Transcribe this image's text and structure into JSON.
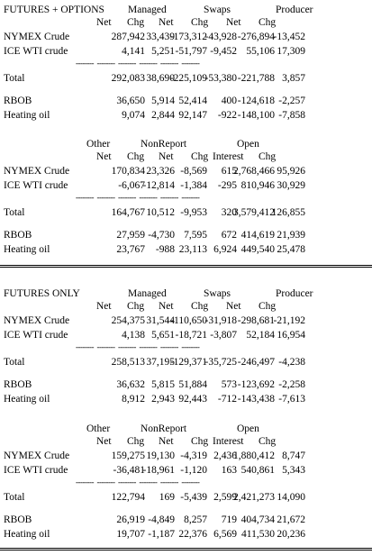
{
  "sections": [
    {
      "title": "FUTURES + OPTIONS",
      "block1": {
        "group_headers": [
          "Managed",
          "Swaps",
          "Producer"
        ],
        "sub_headers": [
          "Net",
          "Chg",
          "Net",
          "Chg",
          "Net",
          "Chg"
        ],
        "rows": [
          {
            "label": "NYMEX Crude",
            "values": [
              "287,942",
              "33,439",
              "-173,312",
              "-43,928",
              "-276,894",
              "-13,452"
            ]
          },
          {
            "label": "ICE WTI crude",
            "values": [
              "4,141",
              "5,251",
              "-51,797",
              "-9,452",
              "55,106",
              "17,309"
            ]
          }
        ],
        "total": {
          "label": "Total",
          "values": [
            "292,083",
            "38,690",
            "-225,109",
            "-53,380",
            "-221,788",
            "3,857"
          ]
        },
        "rows2": [
          {
            "label": "RBOB",
            "values": [
              "36,650",
              "5,914",
              "52,414",
              "400",
              "-124,618",
              "-2,257"
            ]
          },
          {
            "label": "Heating oil",
            "values": [
              "9,074",
              "2,844",
              "92,147",
              "-922",
              "-148,100",
              "-7,858"
            ]
          }
        ]
      },
      "block2": {
        "group_headers": [
          "Other",
          "NonReport",
          "Open"
        ],
        "sub_headers": [
          "Net",
          "Chg",
          "Net",
          "Chg",
          "Interest",
          "Chg"
        ],
        "rows": [
          {
            "label": "NYMEX Crude",
            "values": [
              "170,834",
              "23,326",
              "-8,569",
              "615",
              "2,768,466",
              "95,926"
            ]
          },
          {
            "label": "ICE WTI crude",
            "values": [
              "-6,067",
              "-12,814",
              "-1,384",
              "-295",
              "810,946",
              "30,929"
            ]
          }
        ],
        "total": {
          "label": "Total",
          "values": [
            "164,767",
            "10,512",
            "-9,953",
            "320",
            "3,579,412",
            "126,855"
          ]
        },
        "rows2": [
          {
            "label": "RBOB",
            "values": [
              "27,959",
              "-4,730",
              "7,595",
              "672",
              "414,619",
              "21,939"
            ]
          },
          {
            "label": "Heating oil",
            "values": [
              "23,767",
              "-988",
              "23,113",
              "6,924",
              "449,540",
              "25,478"
            ]
          }
        ]
      }
    },
    {
      "title": "FUTURES ONLY",
      "block1": {
        "group_headers": [
          "Managed",
          "Swaps",
          "Producer"
        ],
        "sub_headers": [
          "Net",
          "Chg",
          "Net",
          "Chg",
          "Net",
          "Chg"
        ],
        "rows": [
          {
            "label": "NYMEX Crude",
            "values": [
              "254,375",
              "31,544",
              "-110,650",
              "-31,918",
              "-298,681",
              "-21,192"
            ]
          },
          {
            "label": "ICE WTI crude",
            "values": [
              "4,138",
              "5,651",
              "-18,721",
              "-3,807",
              "52,184",
              "16,954"
            ]
          }
        ],
        "total": {
          "label": "Total",
          "values": [
            "258,513",
            "37,195",
            "-129,371",
            "-35,725",
            "-246,497",
            "-4,238"
          ]
        },
        "rows2": [
          {
            "label": "RBOB",
            "values": [
              "36,632",
              "5,815",
              "51,884",
              "573",
              "-123,692",
              "-2,258"
            ]
          },
          {
            "label": "Heating oil",
            "values": [
              "8,912",
              "2,943",
              "92,443",
              "-712",
              "-143,438",
              "-7,613"
            ]
          }
        ]
      },
      "block2": {
        "group_headers": [
          "Other",
          "NonReport",
          "Open"
        ],
        "sub_headers": [
          "Net",
          "Chg",
          "Net",
          "Chg",
          "Interest",
          "Chg"
        ],
        "rows": [
          {
            "label": "NYMEX Crude",
            "values": [
              "159,275",
              "19,130",
              "-4,319",
              "2,436",
              "1,880,412",
              "8,747"
            ]
          },
          {
            "label": "ICE WTI crude",
            "values": [
              "-36,481",
              "-18,961",
              "-1,120",
              "163",
              "540,861",
              "5,343"
            ]
          }
        ],
        "total": {
          "label": "Total",
          "values": [
            "122,794",
            "169",
            "-5,439",
            "2,599",
            "2,421,273",
            "14,090"
          ]
        },
        "rows2": [
          {
            "label": "RBOB",
            "values": [
              "26,919",
              "-4,849",
              "8,257",
              "719",
              "404,734",
              "21,672"
            ]
          },
          {
            "label": "Heating oil",
            "values": [
              "19,707",
              "-1,187",
              "22,376",
              "6,569",
              "411,530",
              "20,236"
            ]
          }
        ]
      }
    }
  ]
}
